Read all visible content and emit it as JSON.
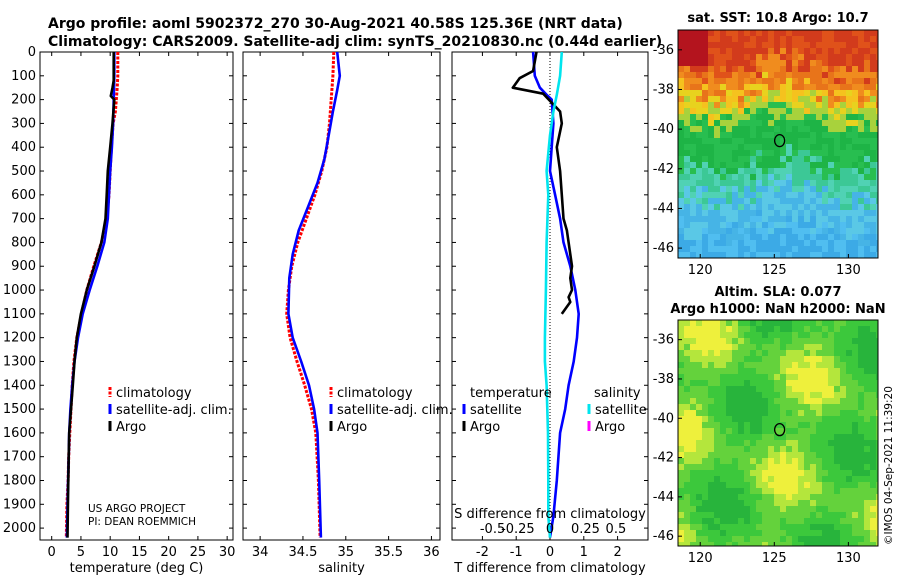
{
  "header": {
    "line1": "Argo profile: aoml 5902372_270 30-Aug-2021 40.58S 125.36E (NRT data)",
    "line2": "Climatology: CARS2009. Satellite-adj clim: synTS_20210830.nc (0.44d earlier)"
  },
  "colors": {
    "climatology": "#ff0000",
    "satellite": "#0000ff",
    "argo": "#000000",
    "satellite_s": "#00e5ee",
    "argo_s": "#ff00ff"
  },
  "chart_data": [
    {
      "type": "line",
      "id": "temperature",
      "xlabel": "temperature (deg C)",
      "ylabel": "",
      "xlim": [
        -2,
        31
      ],
      "ylim": [
        2050,
        0
      ],
      "xticks": [
        0,
        5,
        10,
        15,
        20,
        25,
        30
      ],
      "yticks": [
        0,
        100,
        200,
        300,
        400,
        500,
        600,
        700,
        800,
        900,
        1000,
        1100,
        1200,
        1300,
        1400,
        1500,
        1600,
        1700,
        1800,
        1900,
        2000
      ],
      "series": [
        {
          "name": "climatology",
          "x": [
            11.3,
            11.3,
            11.2,
            10.9,
            10.5,
            10.2,
            10.0,
            9.8,
            9.4,
            8.5,
            7.2,
            6.0,
            5.1,
            4.3,
            3.8,
            3.5,
            3.3,
            3.1,
            2.9,
            2.8,
            2.6,
            2.5
          ],
          "y": [
            0,
            100,
            150,
            250,
            300,
            400,
            500,
            600,
            700,
            800,
            900,
            1000,
            1100,
            1200,
            1300,
            1400,
            1500,
            1600,
            1700,
            1800,
            1900,
            2040
          ]
        },
        {
          "name": "satellite-adj. clim.",
          "x": [
            10.7,
            10.7,
            10.6,
            10.5,
            10.3,
            10.0,
            9.8,
            9.6,
            9.0,
            7.8,
            6.5,
            5.3,
            4.5,
            3.9,
            3.5,
            3.2,
            3.0,
            2.9,
            2.8,
            2.7,
            2.6
          ],
          "y": [
            0,
            100,
            200,
            300,
            400,
            500,
            600,
            700,
            800,
            900,
            1000,
            1100,
            1200,
            1300,
            1400,
            1500,
            1600,
            1700,
            1800,
            1900,
            2040
          ]
        },
        {
          "name": "Argo",
          "x": [
            10.6,
            10.6,
            10.4,
            10.1,
            10.7,
            10.4,
            10.0,
            9.6,
            9.4,
            9.2,
            8.5,
            7.3,
            6.0,
            5.0,
            4.3,
            3.9,
            3.6,
            3.3,
            3.0,
            2.9,
            2.8,
            2.7
          ],
          "y": [
            0,
            120,
            150,
            185,
            200,
            300,
            400,
            500,
            600,
            700,
            800,
            900,
            1000,
            1100,
            1200,
            1300,
            1400,
            1500,
            1600,
            1700,
            1850,
            2040
          ]
        }
      ],
      "legend": [
        "climatology",
        "satellite-adj. clim.",
        "Argo"
      ],
      "legend_position": "lower-right",
      "annotations": [
        "US ARGO PROJECT",
        "PI: DEAN ROEMMICH"
      ]
    },
    {
      "type": "line",
      "id": "salinity",
      "xlabel": "salinity",
      "ylabel": "",
      "xlim": [
        33.8,
        36.1
      ],
      "ylim": [
        2050,
        0
      ],
      "xticks": [
        34,
        34.5,
        35,
        35.5,
        36
      ],
      "xtick_labels": [
        "34",
        "34.5",
        "35",
        "35.5",
        "36"
      ],
      "series": [
        {
          "name": "climatology",
          "x": [
            34.86,
            34.85,
            34.83,
            34.81,
            34.78,
            34.72,
            34.64,
            34.54,
            34.44,
            34.37,
            34.33,
            34.31,
            34.35,
            34.43,
            34.52,
            34.6,
            34.65,
            34.68,
            34.7
          ],
          "y": [
            0,
            100,
            200,
            300,
            400,
            500,
            600,
            700,
            800,
            900,
            1000,
            1100,
            1200,
            1300,
            1400,
            1500,
            1600,
            1800,
            2040
          ]
        },
        {
          "name": "satellite-adj. clim.",
          "x": [
            34.9,
            34.93,
            34.9,
            34.85,
            34.8,
            34.75,
            34.67,
            34.56,
            34.45,
            34.38,
            34.34,
            34.33,
            34.38,
            34.48,
            34.57,
            34.63,
            34.67,
            34.69,
            34.71
          ],
          "y": [
            0,
            100,
            160,
            250,
            350,
            450,
            550,
            650,
            750,
            850,
            950,
            1100,
            1200,
            1300,
            1400,
            1500,
            1600,
            1800,
            2040
          ]
        },
        {
          "name": "Argo",
          "x": [],
          "y": []
        }
      ],
      "legend": [
        "climatology",
        "satellite-adj. clim.",
        "Argo"
      ],
      "legend_position": "lower-right"
    },
    {
      "type": "line",
      "id": "difference",
      "xlabel": "T difference from climatology",
      "xlabel_top": "S difference from climatology",
      "xlim": [
        -2.9,
        2.9
      ],
      "ylim": [
        2050,
        0
      ],
      "xticks": [
        -2,
        -1,
        0,
        1,
        2
      ],
      "xtick_labels": [
        "-2",
        "-1",
        "0",
        "1",
        "2"
      ],
      "s_xtick_labels": [
        "-0.5",
        "-0.25",
        "0",
        "0.25",
        "0.5"
      ],
      "series": [
        {
          "name": "temperature satellite",
          "x": [
            -0.5,
            -0.45,
            -0.3,
            -0.1,
            0.05,
            0.1,
            0.05,
            0.0,
            0.15,
            0.3,
            0.4,
            0.6,
            0.75,
            0.85,
            0.8,
            0.7,
            0.55,
            0.45,
            0.3,
            0.2,
            0.1,
            0.0
          ],
          "y": [
            0,
            100,
            150,
            180,
            200,
            300,
            400,
            500,
            600,
            700,
            800,
            900,
            1000,
            1100,
            1200,
            1300,
            1400,
            1500,
            1600,
            1800,
            1950,
            2040
          ]
        },
        {
          "name": "temperature Argo",
          "x": [
            -0.4,
            -0.5,
            -0.9,
            -1.1,
            -0.2,
            0.3,
            0.35,
            0.2,
            0.3,
            0.35,
            0.4,
            0.5,
            0.55,
            0.6,
            0.65,
            0.6,
            0.65,
            0.55,
            0.6,
            0.45,
            0.35
          ],
          "y": [
            0,
            80,
            110,
            150,
            175,
            250,
            300,
            400,
            500,
            600,
            700,
            750,
            800,
            850,
            900,
            950,
            1000,
            1030,
            1050,
            1080,
            1100
          ]
        },
        {
          "name": "salinity satellite",
          "x": [
            0.35,
            0.3,
            0.2,
            0.1,
            0.0,
            -0.1,
            -0.05,
            -0.1,
            -0.12,
            -0.15,
            -0.15,
            -0.1,
            -0.06,
            -0.05,
            -0.05,
            0.0
          ],
          "y": [
            0,
            100,
            180,
            250,
            350,
            500,
            600,
            800,
            1000,
            1200,
            1300,
            1400,
            1600,
            1800,
            1950,
            2040
          ]
        },
        {
          "name": "salinity Argo",
          "x": [],
          "y": []
        }
      ],
      "legend_left_title": "temperature",
      "legend_right_title": "salinity",
      "legend_left": [
        "satellite",
        "Argo"
      ],
      "legend_right": [
        "satellite",
        "Argo"
      ]
    }
  ],
  "maps": {
    "sst": {
      "title": "sat. SST: 10.8 Argo: 10.7",
      "xticks": [
        "120",
        "125",
        "130"
      ],
      "yticks": [
        "-36",
        "-38",
        "-40",
        "-42",
        "-44",
        "-46"
      ]
    },
    "sla": {
      "title1": "Altim. SLA: 0.077",
      "title2": "Argo h1000: NaN h2000: NaN",
      "xticks": [
        "120",
        "125",
        "130"
      ],
      "yticks": [
        "-36",
        "-38",
        "-40",
        "-42",
        "-44",
        "-46"
      ]
    },
    "profile_location": {
      "lon": 125.36,
      "lat": -40.58
    },
    "lon_range": [
      118.5,
      132.0
    ],
    "lat_range": [
      -46.5,
      -35.0
    ]
  },
  "watermark": "©IMOS 04-Sep-2021 11:39:20"
}
